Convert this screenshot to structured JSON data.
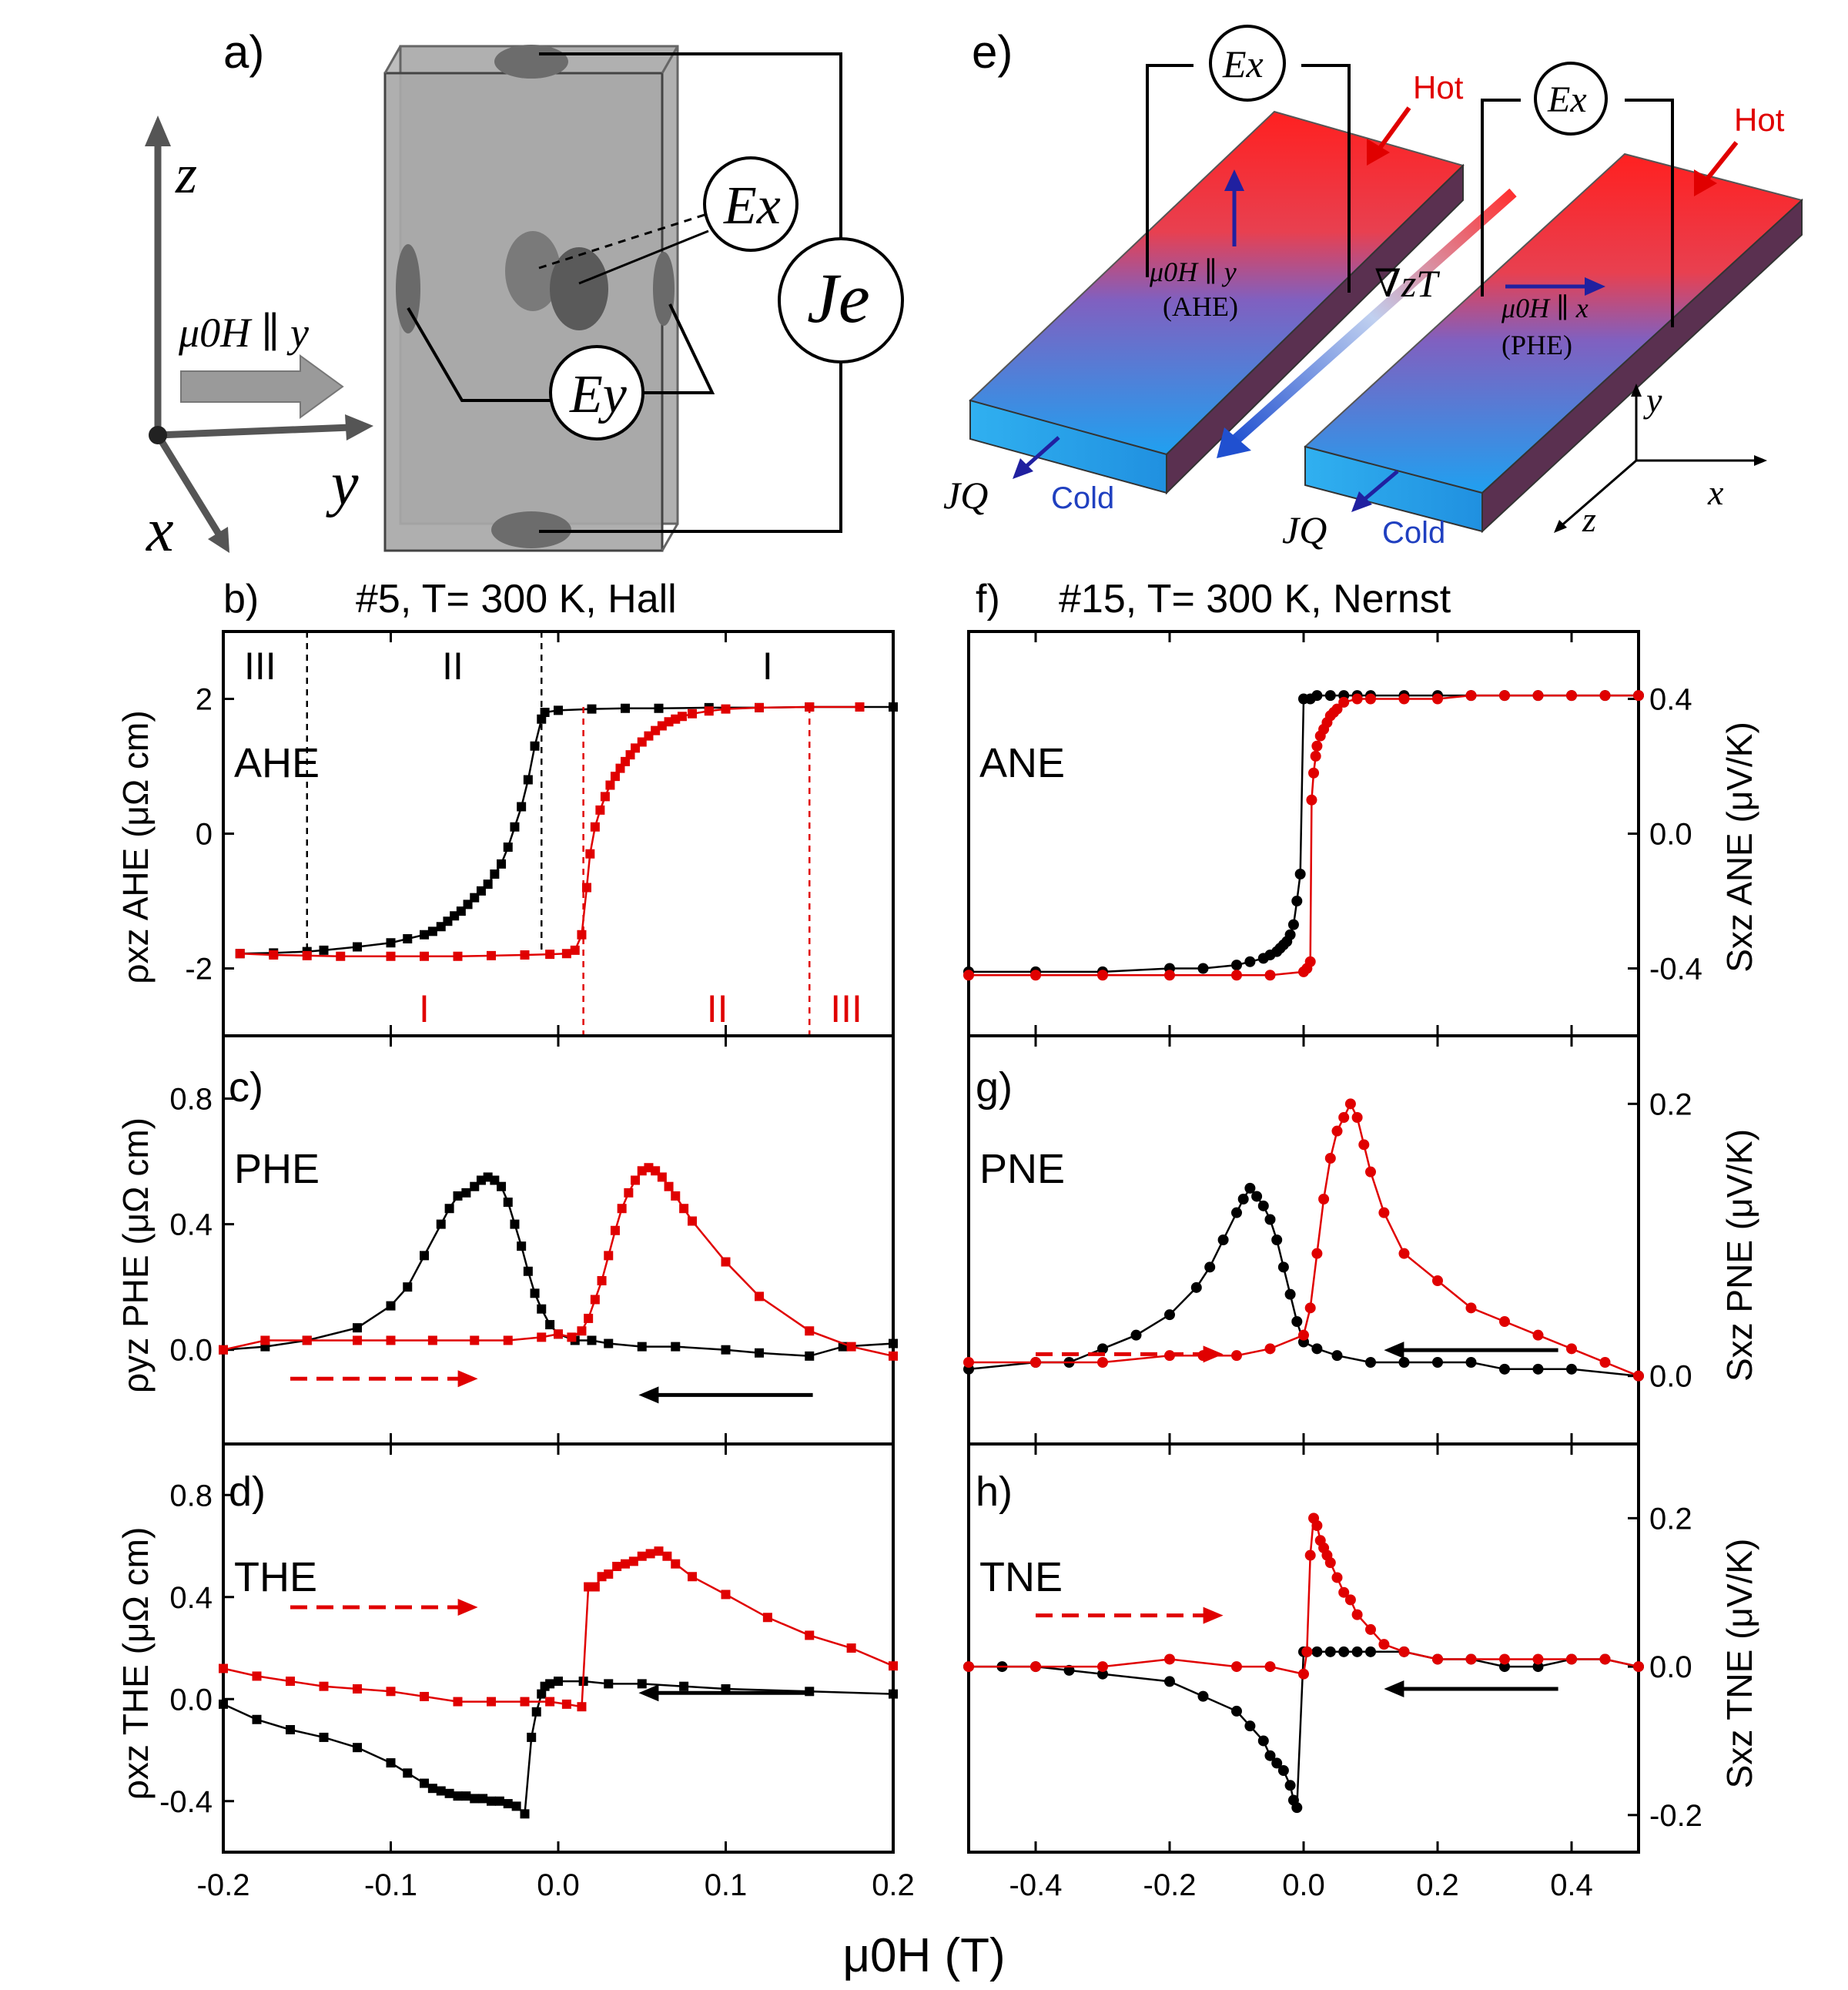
{
  "figure": {
    "panel_labels": {
      "a": "a)",
      "b": "b)",
      "c": "c)",
      "d": "d)",
      "e": "e)",
      "f": "f)",
      "g": "g)",
      "h": "h)"
    },
    "left_header": "#5,  T= 300 K, Hall",
    "right_header": "#15,  T= 300 K, Nernst",
    "x_axis_label": "μ0H (T)",
    "left_ylabels": [
      "ρxz AHE (μΩ cm)",
      "ρyz PHE (μΩ cm)",
      "ρxz THE (μΩ cm)"
    ],
    "right_ylabels": [
      "Sxz ANE (μV/K)",
      "Sxz PNE (μV/K)",
      "Sxz TNE (μV/K)"
    ]
  },
  "diagram_a": {
    "axis_z": "z",
    "axis_y": "y",
    "axis_x": "x",
    "field_label": "μ0H ∥ y",
    "ex_label": "Ex",
    "ey_label": "Ey",
    "je_label": "Je"
  },
  "diagram_e": {
    "ex_label": "Ex",
    "hot": "Hot",
    "cold": "Cold",
    "jq": "JQ",
    "ahe_field": "μ0H ∥ y",
    "ahe_tag": "(AHE)",
    "phe_field": "μ0H ∥ x",
    "phe_tag": "(PHE)",
    "gradient": "∇zT",
    "axes": {
      "y": "y",
      "x": "x",
      "z": "z"
    }
  },
  "chart_data": [
    {
      "id": "b",
      "type": "line",
      "title": "AHE",
      "xlim": [
        -0.2,
        0.2
      ],
      "ylim": [
        -3,
        3
      ],
      "yticks": [
        -2,
        0,
        2
      ],
      "ylabel": "ρxz AHE (μΩ cm)",
      "region_labels_black": [
        "III",
        "II",
        "I"
      ],
      "region_labels_red": [
        "I",
        "II",
        "III"
      ],
      "series": [
        {
          "name": "down sweep",
          "color": "#000000",
          "marker": "square",
          "x": [
            0.2,
            0.18,
            0.15,
            0.12,
            0.09,
            0.06,
            0.04,
            0.02,
            0.0,
            -0.008,
            -0.01,
            -0.014,
            -0.018,
            -0.022,
            -0.026,
            -0.03,
            -0.034,
            -0.038,
            -0.042,
            -0.046,
            -0.05,
            -0.054,
            -0.058,
            -0.062,
            -0.066,
            -0.07,
            -0.075,
            -0.08,
            -0.09,
            -0.1,
            -0.12,
            -0.14,
            -0.15,
            -0.17,
            -0.19
          ],
          "y": [
            1.88,
            1.88,
            1.88,
            1.87,
            1.87,
            1.86,
            1.86,
            1.85,
            1.83,
            1.8,
            1.7,
            1.3,
            0.8,
            0.4,
            0.1,
            -0.2,
            -0.45,
            -0.6,
            -0.75,
            -0.85,
            -0.95,
            -1.05,
            -1.15,
            -1.22,
            -1.3,
            -1.38,
            -1.45,
            -1.5,
            -1.56,
            -1.62,
            -1.68,
            -1.73,
            -1.75,
            -1.77,
            -1.78
          ]
        },
        {
          "name": "up sweep",
          "color": "#e00000",
          "marker": "square",
          "x": [
            -0.19,
            -0.17,
            -0.15,
            -0.13,
            -0.1,
            -0.08,
            -0.06,
            -0.04,
            -0.02,
            -0.005,
            0.005,
            0.01,
            0.014,
            0.017,
            0.019,
            0.022,
            0.025,
            0.028,
            0.031,
            0.034,
            0.037,
            0.04,
            0.043,
            0.046,
            0.05,
            0.054,
            0.058,
            0.062,
            0.066,
            0.07,
            0.074,
            0.08,
            0.09,
            0.1,
            0.12,
            0.15,
            0.18
          ],
          "y": [
            -1.78,
            -1.8,
            -1.81,
            -1.82,
            -1.82,
            -1.82,
            -1.82,
            -1.81,
            -1.8,
            -1.79,
            -1.78,
            -1.73,
            -1.5,
            -0.8,
            -0.3,
            0.1,
            0.35,
            0.55,
            0.72,
            0.85,
            0.97,
            1.07,
            1.17,
            1.27,
            1.36,
            1.45,
            1.53,
            1.6,
            1.66,
            1.7,
            1.74,
            1.78,
            1.82,
            1.85,
            1.87,
            1.88,
            1.88
          ]
        }
      ]
    },
    {
      "id": "c",
      "type": "line",
      "title": "PHE",
      "xlim": [
        -0.2,
        0.2
      ],
      "ylim": [
        -0.3,
        1.0
      ],
      "yticks": [
        0.0,
        0.4,
        0.8
      ],
      "ylabel": "ρyz PHE (μΩ cm)",
      "series": [
        {
          "name": "down sweep",
          "color": "#000000",
          "marker": "square",
          "x": [
            0.2,
            0.17,
            0.15,
            0.12,
            0.1,
            0.07,
            0.05,
            0.03,
            0.02,
            0.01,
            0.0,
            -0.005,
            -0.01,
            -0.014,
            -0.018,
            -0.022,
            -0.026,
            -0.03,
            -0.034,
            -0.038,
            -0.042,
            -0.046,
            -0.05,
            -0.055,
            -0.06,
            -0.065,
            -0.07,
            -0.08,
            -0.09,
            -0.1,
            -0.12,
            -0.15,
            -0.175,
            -0.2
          ],
          "y": [
            0.02,
            0.01,
            -0.02,
            -0.01,
            0.0,
            0.01,
            0.01,
            0.02,
            0.03,
            0.03,
            0.05,
            0.08,
            0.13,
            0.18,
            0.25,
            0.33,
            0.4,
            0.47,
            0.52,
            0.54,
            0.55,
            0.54,
            0.52,
            0.5,
            0.49,
            0.45,
            0.4,
            0.3,
            0.2,
            0.14,
            0.07,
            0.03,
            0.01,
            0.0
          ]
        },
        {
          "name": "up sweep",
          "color": "#e00000",
          "marker": "square",
          "x": [
            -0.2,
            -0.175,
            -0.15,
            -0.12,
            -0.1,
            -0.075,
            -0.05,
            -0.03,
            -0.01,
            0.0,
            0.008,
            0.014,
            0.018,
            0.022,
            0.026,
            0.03,
            0.034,
            0.038,
            0.042,
            0.046,
            0.05,
            0.054,
            0.058,
            0.062,
            0.066,
            0.07,
            0.075,
            0.08,
            0.1,
            0.12,
            0.15,
            0.175,
            0.2
          ],
          "y": [
            0.0,
            0.03,
            0.03,
            0.03,
            0.03,
            0.03,
            0.03,
            0.03,
            0.04,
            0.05,
            0.04,
            0.06,
            0.1,
            0.16,
            0.22,
            0.3,
            0.38,
            0.45,
            0.5,
            0.54,
            0.57,
            0.58,
            0.57,
            0.55,
            0.52,
            0.49,
            0.45,
            0.41,
            0.28,
            0.17,
            0.06,
            0.01,
            -0.02
          ]
        }
      ]
    },
    {
      "id": "d",
      "type": "line",
      "title": "THE",
      "xlim": [
        -0.2,
        0.2
      ],
      "ylim": [
        -0.6,
        1.0
      ],
      "yticks": [
        -0.4,
        0.0,
        0.4,
        0.8
      ],
      "ylabel": "ρxz THE (μΩ cm)",
      "series": [
        {
          "name": "down sweep",
          "color": "#000000",
          "marker": "square",
          "x": [
            0.2,
            0.15,
            0.1,
            0.075,
            0.05,
            0.03,
            0.015,
            0.0,
            -0.005,
            -0.008,
            -0.01,
            -0.013,
            -0.016,
            -0.02,
            -0.025,
            -0.03,
            -0.035,
            -0.04,
            -0.045,
            -0.05,
            -0.055,
            -0.06,
            -0.065,
            -0.07,
            -0.075,
            -0.08,
            -0.09,
            -0.1,
            -0.12,
            -0.14,
            -0.16,
            -0.18,
            -0.2
          ],
          "y": [
            0.02,
            0.03,
            0.04,
            0.05,
            0.06,
            0.06,
            0.07,
            0.07,
            0.06,
            0.05,
            0.02,
            -0.05,
            -0.15,
            -0.45,
            -0.42,
            -0.41,
            -0.4,
            -0.4,
            -0.39,
            -0.39,
            -0.38,
            -0.38,
            -0.37,
            -0.36,
            -0.35,
            -0.33,
            -0.29,
            -0.25,
            -0.19,
            -0.15,
            -0.12,
            -0.08,
            -0.02
          ]
        },
        {
          "name": "up sweep",
          "color": "#e00000",
          "marker": "square",
          "x": [
            -0.2,
            -0.18,
            -0.16,
            -0.14,
            -0.12,
            -0.1,
            -0.08,
            -0.06,
            -0.04,
            -0.02,
            -0.005,
            0.005,
            0.014,
            0.018,
            0.022,
            0.026,
            0.03,
            0.035,
            0.04,
            0.045,
            0.05,
            0.055,
            0.06,
            0.065,
            0.07,
            0.08,
            0.1,
            0.125,
            0.15,
            0.175,
            0.2
          ],
          "y": [
            0.12,
            0.09,
            0.07,
            0.05,
            0.04,
            0.03,
            0.01,
            -0.01,
            -0.01,
            -0.01,
            -0.01,
            -0.02,
            -0.03,
            0.44,
            0.44,
            0.48,
            0.49,
            0.52,
            0.53,
            0.54,
            0.56,
            0.57,
            0.58,
            0.56,
            0.53,
            0.48,
            0.41,
            0.32,
            0.25,
            0.2,
            0.13
          ]
        }
      ]
    },
    {
      "id": "f",
      "type": "line",
      "title": "ANE",
      "xlim": [
        -0.5,
        0.5
      ],
      "ylim": [
        -0.6,
        0.6
      ],
      "yticks": [
        -0.4,
        0.0,
        0.4
      ],
      "ylabel": "Sxz ANE (μV/K)",
      "series": [
        {
          "name": "down sweep",
          "color": "#000000",
          "marker": "circle",
          "x": [
            0.5,
            0.45,
            0.4,
            0.35,
            0.3,
            0.25,
            0.2,
            0.15,
            0.1,
            0.08,
            0.06,
            0.04,
            0.02,
            0.01,
            0.0,
            -0.005,
            -0.01,
            -0.015,
            -0.02,
            -0.025,
            -0.03,
            -0.035,
            -0.04,
            -0.05,
            -0.06,
            -0.08,
            -0.1,
            -0.15,
            -0.2,
            -0.3,
            -0.4,
            -0.5
          ],
          "y": [
            0.41,
            0.41,
            0.41,
            0.41,
            0.41,
            0.41,
            0.41,
            0.41,
            0.41,
            0.41,
            0.41,
            0.41,
            0.41,
            0.4,
            0.4,
            -0.12,
            -0.2,
            -0.27,
            -0.3,
            -0.32,
            -0.33,
            -0.34,
            -0.35,
            -0.36,
            -0.37,
            -0.38,
            -0.39,
            -0.4,
            -0.4,
            -0.41,
            -0.41,
            -0.41
          ]
        },
        {
          "name": "up sweep",
          "color": "#e00000",
          "marker": "circle",
          "x": [
            -0.5,
            -0.4,
            -0.3,
            -0.2,
            -0.1,
            -0.05,
            0.0,
            0.005,
            0.01,
            0.012,
            0.015,
            0.018,
            0.02,
            0.025,
            0.03,
            0.035,
            0.04,
            0.045,
            0.05,
            0.06,
            0.08,
            0.1,
            0.15,
            0.2,
            0.25,
            0.3,
            0.35,
            0.4,
            0.45,
            0.5
          ],
          "y": [
            -0.42,
            -0.42,
            -0.42,
            -0.42,
            -0.42,
            -0.42,
            -0.41,
            -0.4,
            -0.38,
            0.1,
            0.18,
            0.23,
            0.26,
            0.29,
            0.31,
            0.33,
            0.35,
            0.36,
            0.37,
            0.39,
            0.4,
            0.4,
            0.4,
            0.4,
            0.41,
            0.41,
            0.41,
            0.41,
            0.41,
            0.41
          ]
        }
      ]
    },
    {
      "id": "g",
      "type": "line",
      "title": "PNE",
      "xlim": [
        -0.5,
        0.5
      ],
      "ylim": [
        -0.05,
        0.25
      ],
      "yticks": [
        0.0,
        0.2
      ],
      "ylabel": "Sxz PNE (μV/K)",
      "series": [
        {
          "name": "down sweep",
          "color": "#000000",
          "marker": "circle",
          "x": [
            0.5,
            0.4,
            0.35,
            0.3,
            0.25,
            0.2,
            0.15,
            0.1,
            0.05,
            0.02,
            0.0,
            -0.01,
            -0.02,
            -0.03,
            -0.04,
            -0.05,
            -0.06,
            -0.07,
            -0.08,
            -0.09,
            -0.1,
            -0.12,
            -0.14,
            -0.16,
            -0.2,
            -0.25,
            -0.3,
            -0.35,
            -0.4,
            -0.5
          ],
          "y": [
            0.0,
            0.005,
            0.005,
            0.005,
            0.01,
            0.01,
            0.01,
            0.01,
            0.015,
            0.02,
            0.025,
            0.04,
            0.06,
            0.08,
            0.1,
            0.115,
            0.125,
            0.132,
            0.138,
            0.13,
            0.12,
            0.1,
            0.08,
            0.065,
            0.045,
            0.03,
            0.02,
            0.01,
            0.01,
            0.005
          ]
        },
        {
          "name": "up sweep",
          "color": "#e00000",
          "marker": "circle",
          "x": [
            -0.5,
            -0.4,
            -0.3,
            -0.2,
            -0.15,
            -0.1,
            -0.05,
            0.0,
            0.01,
            0.02,
            0.03,
            0.04,
            0.05,
            0.06,
            0.07,
            0.08,
            0.09,
            0.1,
            0.12,
            0.15,
            0.2,
            0.25,
            0.3,
            0.35,
            0.4,
            0.45,
            0.5
          ],
          "y": [
            0.01,
            0.01,
            0.01,
            0.015,
            0.015,
            0.015,
            0.02,
            0.03,
            0.05,
            0.09,
            0.13,
            0.16,
            0.18,
            0.19,
            0.2,
            0.19,
            0.17,
            0.15,
            0.12,
            0.09,
            0.07,
            0.05,
            0.04,
            0.03,
            0.02,
            0.01,
            0.0
          ]
        }
      ]
    },
    {
      "id": "h",
      "type": "line",
      "title": "TNE",
      "xlim": [
        -0.5,
        0.5
      ],
      "ylim": [
        -0.25,
        0.3
      ],
      "yticks": [
        -0.2,
        0.0,
        0.2
      ],
      "ylabel": "Sxz TNE (μV/K)",
      "series": [
        {
          "name": "down sweep",
          "color": "#000000",
          "marker": "circle",
          "x": [
            0.5,
            0.45,
            0.4,
            0.35,
            0.3,
            0.25,
            0.2,
            0.15,
            0.1,
            0.08,
            0.06,
            0.04,
            0.02,
            0.005,
            0.0,
            -0.01,
            -0.015,
            -0.02,
            -0.03,
            -0.04,
            -0.05,
            -0.06,
            -0.08,
            -0.1,
            -0.15,
            -0.2,
            -0.3,
            -0.35,
            -0.4,
            -0.45,
            -0.5
          ],
          "y": [
            0.0,
            0.01,
            0.01,
            0.0,
            0.0,
            0.01,
            0.01,
            0.02,
            0.02,
            0.02,
            0.02,
            0.02,
            0.02,
            0.02,
            0.02,
            -0.19,
            -0.18,
            -0.16,
            -0.14,
            -0.13,
            -0.12,
            -0.1,
            -0.08,
            -0.06,
            -0.04,
            -0.02,
            -0.01,
            -0.005,
            0.0,
            0.0,
            0.0
          ]
        },
        {
          "name": "up sweep",
          "color": "#e00000",
          "marker": "circle",
          "x": [
            -0.5,
            -0.4,
            -0.3,
            -0.2,
            -0.1,
            -0.05,
            0.0,
            0.005,
            0.01,
            0.015,
            0.02,
            0.025,
            0.03,
            0.035,
            0.04,
            0.05,
            0.06,
            0.07,
            0.08,
            0.1,
            0.12,
            0.15,
            0.2,
            0.25,
            0.3,
            0.35,
            0.4,
            0.45,
            0.5
          ],
          "y": [
            0.0,
            0.0,
            0.0,
            0.01,
            0.0,
            0.0,
            -0.01,
            0.02,
            0.15,
            0.2,
            0.19,
            0.17,
            0.16,
            0.15,
            0.14,
            0.12,
            0.1,
            0.09,
            0.07,
            0.05,
            0.03,
            0.02,
            0.01,
            0.01,
            0.01,
            0.01,
            0.01,
            0.01,
            0.0
          ]
        }
      ]
    }
  ]
}
